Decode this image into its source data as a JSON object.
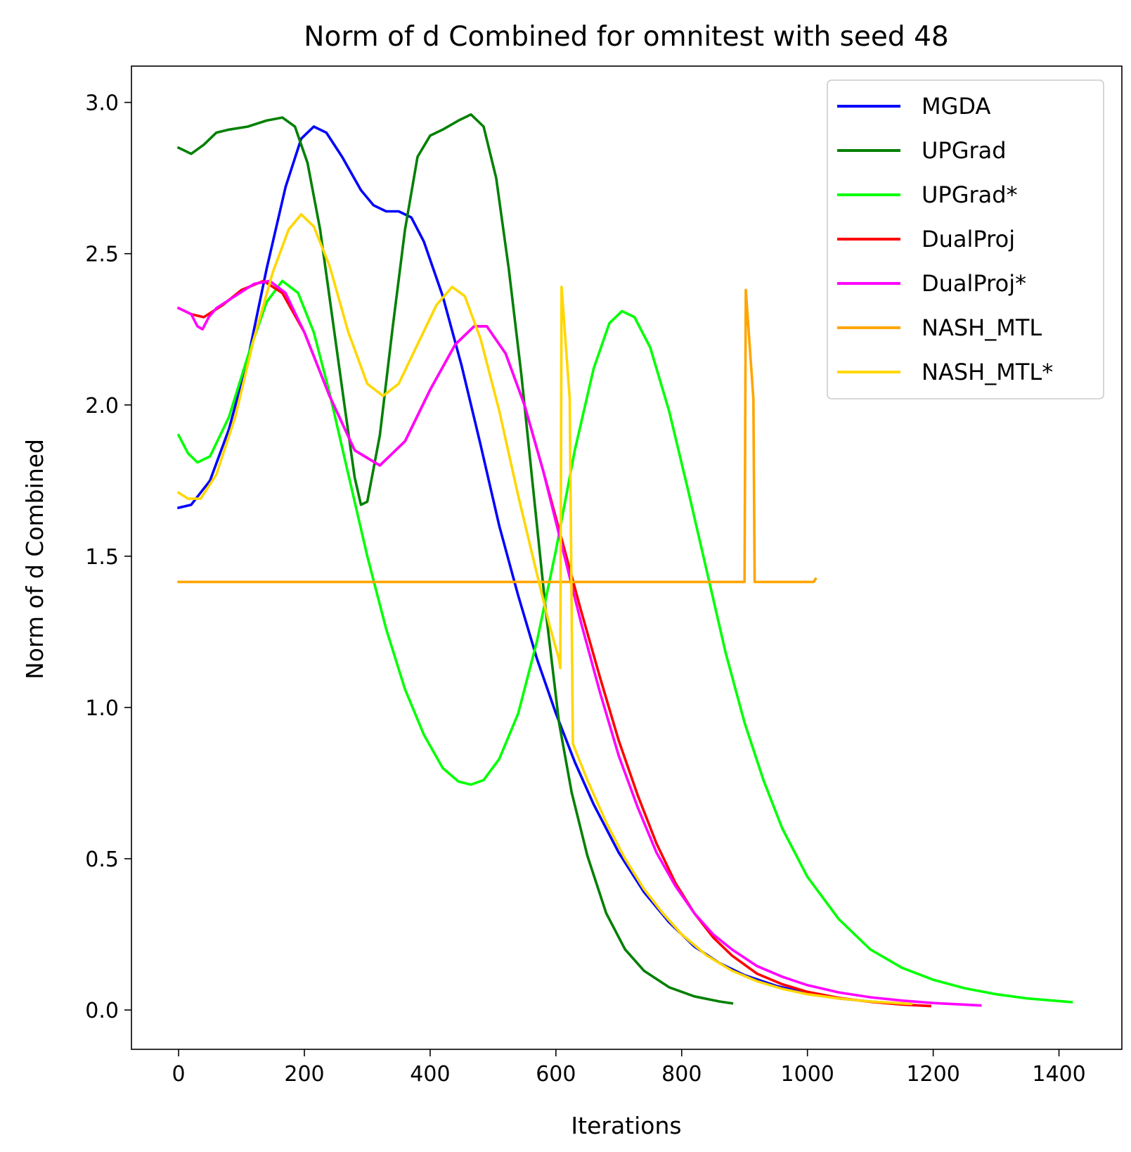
{
  "chart_data": {
    "type": "line",
    "title": "Norm of d Combined for omnitest with seed 48",
    "xlabel": "Iterations",
    "ylabel": "Norm of d Combined",
    "xlim": [
      -75,
      1500
    ],
    "ylim": [
      -0.13,
      3.12
    ],
    "xticks": [
      0,
      200,
      400,
      600,
      800,
      1000,
      1200,
      1400
    ],
    "yticks": [
      0.0,
      0.5,
      1.0,
      1.5,
      2.0,
      2.5,
      3.0
    ],
    "xtick_labels": [
      "0",
      "200",
      "400",
      "600",
      "800",
      "1000",
      "1200",
      "1400"
    ],
    "ytick_labels": [
      "0.0",
      "0.5",
      "1.0",
      "1.5",
      "2.0",
      "2.5",
      "3.0"
    ],
    "grid": false,
    "legend_position": "top-right",
    "series": [
      {
        "name": "MGDA",
        "color": "#0000ff",
        "points": [
          [
            0,
            1.66
          ],
          [
            20,
            1.67
          ],
          [
            50,
            1.75
          ],
          [
            80,
            1.92
          ],
          [
            110,
            2.15
          ],
          [
            140,
            2.45
          ],
          [
            170,
            2.72
          ],
          [
            195,
            2.88
          ],
          [
            215,
            2.92
          ],
          [
            235,
            2.9
          ],
          [
            260,
            2.82
          ],
          [
            290,
            2.71
          ],
          [
            310,
            2.66
          ],
          [
            330,
            2.64
          ],
          [
            350,
            2.64
          ],
          [
            370,
            2.62
          ],
          [
            390,
            2.54
          ],
          [
            420,
            2.36
          ],
          [
            450,
            2.13
          ],
          [
            480,
            1.87
          ],
          [
            510,
            1.6
          ],
          [
            540,
            1.37
          ],
          [
            570,
            1.16
          ],
          [
            600,
            0.98
          ],
          [
            630,
            0.82
          ],
          [
            660,
            0.68
          ],
          [
            700,
            0.52
          ],
          [
            740,
            0.39
          ],
          [
            780,
            0.29
          ],
          [
            820,
            0.21
          ],
          [
            860,
            0.155
          ],
          [
            900,
            0.115
          ],
          [
            950,
            0.08
          ],
          [
            1000,
            0.055
          ],
          [
            1050,
            0.038
          ],
          [
            1100,
            0.028
          ],
          [
            1140,
            0.022
          ]
        ]
      },
      {
        "name": "UPGrad",
        "color": "#008000",
        "points": [
          [
            0,
            2.85
          ],
          [
            20,
            2.83
          ],
          [
            40,
            2.86
          ],
          [
            60,
            2.9
          ],
          [
            80,
            2.91
          ],
          [
            110,
            2.92
          ],
          [
            140,
            2.94
          ],
          [
            165,
            2.95
          ],
          [
            185,
            2.92
          ],
          [
            205,
            2.8
          ],
          [
            225,
            2.58
          ],
          [
            245,
            2.28
          ],
          [
            265,
            1.98
          ],
          [
            280,
            1.76
          ],
          [
            290,
            1.67
          ],
          [
            300,
            1.68
          ],
          [
            320,
            1.9
          ],
          [
            340,
            2.25
          ],
          [
            360,
            2.58
          ],
          [
            380,
            2.82
          ],
          [
            400,
            2.89
          ],
          [
            420,
            2.91
          ],
          [
            445,
            2.94
          ],
          [
            465,
            2.96
          ],
          [
            485,
            2.92
          ],
          [
            505,
            2.75
          ],
          [
            525,
            2.45
          ],
          [
            545,
            2.1
          ],
          [
            565,
            1.7
          ],
          [
            585,
            1.3
          ],
          [
            605,
            0.95
          ],
          [
            625,
            0.72
          ],
          [
            650,
            0.51
          ],
          [
            680,
            0.32
          ],
          [
            710,
            0.2
          ],
          [
            740,
            0.13
          ],
          [
            780,
            0.075
          ],
          [
            820,
            0.045
          ],
          [
            860,
            0.028
          ],
          [
            880,
            0.022
          ]
        ]
      },
      {
        "name": "UPGrad*",
        "color": "#00ff00",
        "points": [
          [
            0,
            1.9
          ],
          [
            15,
            1.84
          ],
          [
            30,
            1.81
          ],
          [
            50,
            1.83
          ],
          [
            80,
            1.96
          ],
          [
            110,
            2.16
          ],
          [
            140,
            2.34
          ],
          [
            165,
            2.41
          ],
          [
            190,
            2.37
          ],
          [
            215,
            2.24
          ],
          [
            240,
            2.04
          ],
          [
            270,
            1.77
          ],
          [
            300,
            1.5
          ],
          [
            330,
            1.26
          ],
          [
            360,
            1.06
          ],
          [
            390,
            0.91
          ],
          [
            420,
            0.8
          ],
          [
            445,
            0.755
          ],
          [
            465,
            0.745
          ],
          [
            485,
            0.76
          ],
          [
            510,
            0.83
          ],
          [
            540,
            0.98
          ],
          [
            570,
            1.22
          ],
          [
            600,
            1.52
          ],
          [
            630,
            1.85
          ],
          [
            660,
            2.12
          ],
          [
            685,
            2.27
          ],
          [
            705,
            2.31
          ],
          [
            725,
            2.29
          ],
          [
            750,
            2.19
          ],
          [
            780,
            1.98
          ],
          [
            810,
            1.72
          ],
          [
            840,
            1.45
          ],
          [
            870,
            1.18
          ],
          [
            900,
            0.95
          ],
          [
            930,
            0.76
          ],
          [
            960,
            0.6
          ],
          [
            1000,
            0.44
          ],
          [
            1050,
            0.3
          ],
          [
            1100,
            0.2
          ],
          [
            1150,
            0.14
          ],
          [
            1200,
            0.1
          ],
          [
            1250,
            0.072
          ],
          [
            1300,
            0.052
          ],
          [
            1350,
            0.038
          ],
          [
            1420,
            0.026
          ]
        ]
      },
      {
        "name": "DualProj",
        "color": "#ff0000",
        "points": [
          [
            0,
            2.32
          ],
          [
            20,
            2.3
          ],
          [
            40,
            2.29
          ],
          [
            70,
            2.33
          ],
          [
            100,
            2.38
          ],
          [
            135,
            2.41
          ],
          [
            165,
            2.37
          ],
          [
            200,
            2.24
          ],
          [
            240,
            2.03
          ],
          [
            280,
            1.85
          ],
          [
            320,
            1.8
          ],
          [
            360,
            1.88
          ],
          [
            400,
            2.05
          ],
          [
            440,
            2.2
          ],
          [
            470,
            2.26
          ],
          [
            490,
            2.26
          ],
          [
            520,
            2.17
          ],
          [
            550,
            2.0
          ],
          [
            580,
            1.78
          ],
          [
            610,
            1.55
          ],
          [
            640,
            1.32
          ],
          [
            670,
            1.1
          ],
          [
            700,
            0.89
          ],
          [
            730,
            0.71
          ],
          [
            760,
            0.55
          ],
          [
            790,
            0.42
          ],
          [
            820,
            0.32
          ],
          [
            850,
            0.24
          ],
          [
            880,
            0.18
          ],
          [
            920,
            0.12
          ],
          [
            960,
            0.085
          ],
          [
            1000,
            0.06
          ],
          [
            1050,
            0.04
          ],
          [
            1100,
            0.027
          ],
          [
            1150,
            0.018
          ],
          [
            1195,
            0.013
          ]
        ]
      },
      {
        "name": "DualProj*",
        "color": "#ff00ff",
        "points": [
          [
            0,
            2.32
          ],
          [
            20,
            2.3
          ],
          [
            30,
            2.26
          ],
          [
            38,
            2.25
          ],
          [
            48,
            2.29
          ],
          [
            60,
            2.32
          ],
          [
            90,
            2.36
          ],
          [
            120,
            2.4
          ],
          [
            145,
            2.41
          ],
          [
            170,
            2.37
          ],
          [
            200,
            2.24
          ],
          [
            240,
            2.03
          ],
          [
            280,
            1.85
          ],
          [
            320,
            1.8
          ],
          [
            360,
            1.88
          ],
          [
            400,
            2.05
          ],
          [
            440,
            2.2
          ],
          [
            470,
            2.26
          ],
          [
            490,
            2.26
          ],
          [
            520,
            2.17
          ],
          [
            550,
            2.0
          ],
          [
            580,
            1.78
          ],
          [
            610,
            1.53
          ],
          [
            640,
            1.28
          ],
          [
            670,
            1.05
          ],
          [
            700,
            0.84
          ],
          [
            730,
            0.67
          ],
          [
            760,
            0.52
          ],
          [
            790,
            0.41
          ],
          [
            820,
            0.32
          ],
          [
            850,
            0.25
          ],
          [
            880,
            0.2
          ],
          [
            920,
            0.145
          ],
          [
            960,
            0.11
          ],
          [
            1000,
            0.082
          ],
          [
            1050,
            0.058
          ],
          [
            1100,
            0.042
          ],
          [
            1150,
            0.031
          ],
          [
            1200,
            0.023
          ],
          [
            1275,
            0.015
          ]
        ]
      },
      {
        "name": "NASH_MTL",
        "color": "#ffa500",
        "points": [
          [
            0,
            1.415
          ],
          [
            200,
            1.415
          ],
          [
            400,
            1.415
          ],
          [
            600,
            1.415
          ],
          [
            800,
            1.415
          ],
          [
            900,
            1.415
          ],
          [
            902,
            2.38
          ],
          [
            914,
            2.02
          ],
          [
            916,
            1.415
          ],
          [
            1000,
            1.415
          ],
          [
            1010,
            1.415
          ],
          [
            1013,
            1.425
          ]
        ]
      },
      {
        "name": "NASH_MTL*",
        "color": "#ffd700",
        "points": [
          [
            0,
            1.71
          ],
          [
            15,
            1.69
          ],
          [
            35,
            1.69
          ],
          [
            60,
            1.77
          ],
          [
            90,
            1.96
          ],
          [
            120,
            2.22
          ],
          [
            150,
            2.44
          ],
          [
            175,
            2.58
          ],
          [
            195,
            2.63
          ],
          [
            215,
            2.59
          ],
          [
            240,
            2.46
          ],
          [
            270,
            2.24
          ],
          [
            300,
            2.07
          ],
          [
            325,
            2.03
          ],
          [
            350,
            2.07
          ],
          [
            380,
            2.2
          ],
          [
            410,
            2.33
          ],
          [
            435,
            2.39
          ],
          [
            455,
            2.36
          ],
          [
            480,
            2.22
          ],
          [
            510,
            1.98
          ],
          [
            540,
            1.7
          ],
          [
            570,
            1.44
          ],
          [
            590,
            1.27
          ],
          [
            605,
            1.16
          ],
          [
            607,
            1.13
          ],
          [
            609,
            2.39
          ],
          [
            622,
            2.02
          ],
          [
            627,
            0.88
          ],
          [
            650,
            0.76
          ],
          [
            680,
            0.62
          ],
          [
            710,
            0.5
          ],
          [
            740,
            0.4
          ],
          [
            770,
            0.32
          ],
          [
            800,
            0.25
          ],
          [
            840,
            0.18
          ],
          [
            880,
            0.13
          ],
          [
            920,
            0.095
          ],
          [
            960,
            0.07
          ],
          [
            1000,
            0.052
          ],
          [
            1050,
            0.038
          ],
          [
            1100,
            0.028
          ],
          [
            1165,
            0.02
          ]
        ]
      }
    ]
  }
}
